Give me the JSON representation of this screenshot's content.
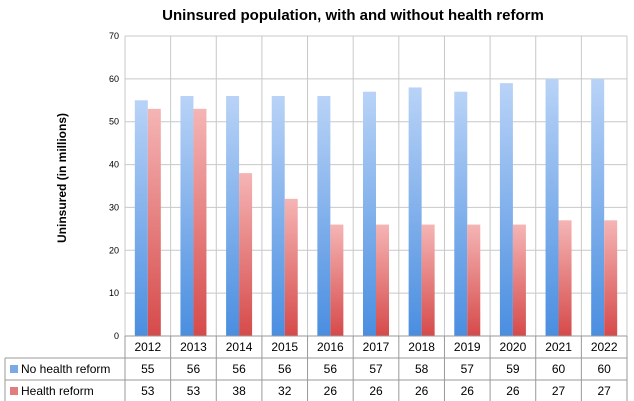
{
  "chart_data": {
    "type": "bar",
    "title": "Uninsured population, with and without health reform",
    "ylabel": "Uninsured (in millions)",
    "xlabel": "",
    "ylim": [
      0,
      70
    ],
    "yticks": [
      0,
      10,
      20,
      30,
      40,
      50,
      60,
      70
    ],
    "grid": true,
    "legend_placement": "table-left",
    "categories": [
      "2012",
      "2013",
      "2014",
      "2015",
      "2016",
      "2017",
      "2018",
      "2019",
      "2020",
      "2021",
      "2022"
    ],
    "series": [
      {
        "name": "No health reform",
        "color": "#8fb8ef",
        "values": [
          55,
          56,
          56,
          56,
          56,
          57,
          58,
          57,
          59,
          60,
          60
        ]
      },
      {
        "name": "Health reform",
        "color": "#e88a8a",
        "values": [
          53,
          53,
          38,
          32,
          26,
          26,
          26,
          26,
          26,
          27,
          27
        ]
      }
    ]
  }
}
